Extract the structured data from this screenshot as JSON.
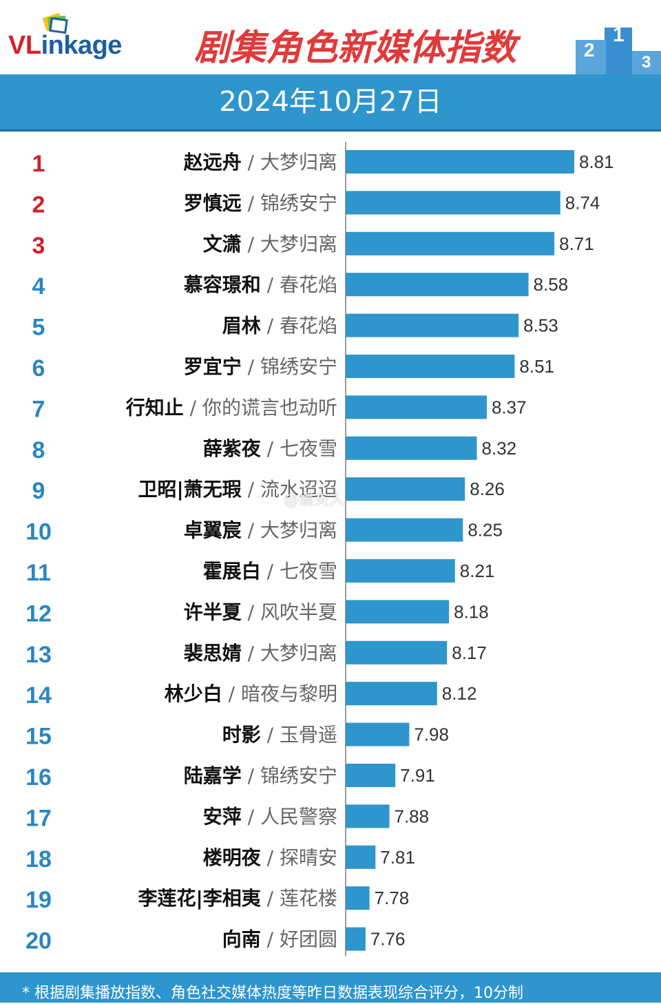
{
  "header": {
    "logo": "VLinkage",
    "title": "剧集角色新媒体指数",
    "date": "2024年10月27日"
  },
  "colors": {
    "bar": "#2e95cd",
    "band": "#2e95cd",
    "rank_top": "#d0202a",
    "rank_rest": "#2a86c2",
    "title": "#e03a3a"
  },
  "chart_data": {
    "type": "bar",
    "orientation": "horizontal",
    "categories": [
      {
        "rank": "1",
        "role": "赵远舟",
        "drama": "大梦归离"
      },
      {
        "rank": "2",
        "role": "罗慎远",
        "drama": "锦绣安宁"
      },
      {
        "rank": "3",
        "role": "文潇",
        "drama": "大梦归离"
      },
      {
        "rank": "4",
        "role": "慕容璟和",
        "drama": "春花焰"
      },
      {
        "rank": "5",
        "role": "眉林",
        "drama": "春花焰"
      },
      {
        "rank": "6",
        "role": "罗宜宁",
        "drama": "锦绣安宁"
      },
      {
        "rank": "7",
        "role": "行知止",
        "drama": "你的谎言也动听"
      },
      {
        "rank": "8",
        "role": "薛紫夜",
        "drama": "七夜雪"
      },
      {
        "rank": "9",
        "role": "卫昭|萧无瑕",
        "drama": "流水迢迢"
      },
      {
        "rank": "10",
        "role": "卓翼宸",
        "drama": "大梦归离"
      },
      {
        "rank": "11",
        "role": "霍展白",
        "drama": "七夜雪"
      },
      {
        "rank": "12",
        "role": "许半夏",
        "drama": "风吹半夏"
      },
      {
        "rank": "13",
        "role": "裴思婧",
        "drama": "大梦归离"
      },
      {
        "rank": "14",
        "role": "林少白",
        "drama": "暗夜与黎明"
      },
      {
        "rank": "15",
        "role": "时影",
        "drama": "玉骨遥"
      },
      {
        "rank": "16",
        "role": "陆嘉学",
        "drama": "锦绣安宁"
      },
      {
        "rank": "17",
        "role": "安萍",
        "drama": "人民警察"
      },
      {
        "rank": "18",
        "role": "楼明夜",
        "drama": "探晴安"
      },
      {
        "rank": "19",
        "role": "李莲花|李相夷",
        "drama": "莲花楼"
      },
      {
        "rank": "20",
        "role": "向南",
        "drama": "好团圆"
      }
    ],
    "values": [
      8.81,
      8.74,
      8.71,
      8.58,
      8.53,
      8.51,
      8.37,
      8.32,
      8.26,
      8.25,
      8.21,
      8.18,
      8.17,
      8.12,
      7.98,
      7.91,
      7.88,
      7.81,
      7.78,
      7.76
    ],
    "value_labels": [
      "8.81",
      "8.74",
      "8.71",
      "8.58",
      "8.53",
      "8.51",
      "8.37",
      "8.32",
      "8.26",
      "8.25",
      "8.21",
      "8.18",
      "8.17",
      "8.12",
      "7.98",
      "7.91",
      "7.88",
      "7.81",
      "7.78",
      "7.76"
    ],
    "xlim": [
      7.66,
      8.81
    ],
    "grid": false,
    "legend": "none"
  },
  "footer": {
    "note": "* 根据剧集播放指数、角色社交媒体热度等昨日数据表现综合评分，10分制"
  },
  "watermark": "@娱夫人"
}
